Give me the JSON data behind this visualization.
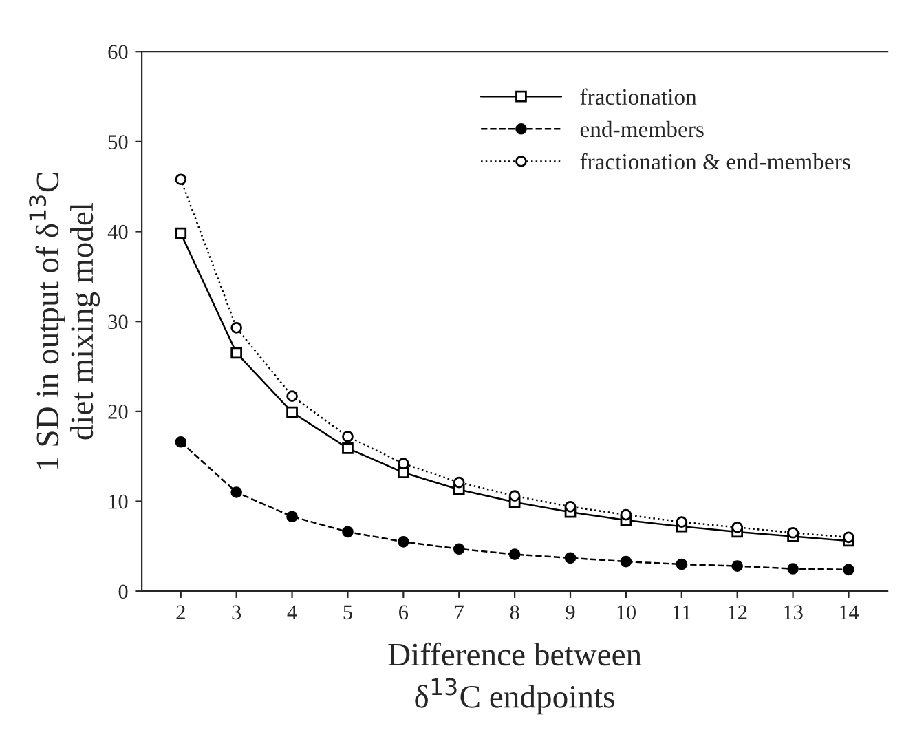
{
  "chart_data": {
    "type": "line",
    "xlabel": "Difference between\nδ$^{13}$C endpoints",
    "ylabel": "1 SD in output of δ$^{13}$C\ndiet mixing model",
    "x": [
      2,
      3,
      4,
      5,
      6,
      7,
      8,
      9,
      10,
      11,
      12,
      13,
      14
    ],
    "series": [
      {
        "name": "fractionation",
        "color": "#000000",
        "marker": "square",
        "line_style": "solid",
        "values": [
          39.8,
          26.5,
          19.9,
          15.9,
          13.2,
          11.3,
          9.9,
          8.8,
          7.9,
          7.2,
          6.6,
          6.1,
          5.6
        ]
      },
      {
        "name": "end-members",
        "color": "#000000",
        "marker": "circle",
        "line_style": "dashed",
        "values": [
          16.6,
          11.0,
          8.3,
          6.6,
          5.5,
          4.7,
          4.1,
          3.7,
          3.3,
          3.0,
          2.8,
          2.5,
          2.4
        ]
      },
      {
        "name": "fractionation & end-members",
        "color": "#000000",
        "marker": "circle",
        "line_style": "dotted",
        "values": [
          45.8,
          29.3,
          21.7,
          17.2,
          14.2,
          12.1,
          10.6,
          9.4,
          8.5,
          7.7,
          7.1,
          6.5,
          6.0
        ]
      }
    ],
    "xlim": [
      1.3,
      14.7
    ],
    "xticks": [
      2,
      3,
      4,
      5,
      6,
      7,
      8,
      9,
      10,
      11,
      12,
      13,
      14
    ],
    "ylim": [
      0,
      60
    ],
    "yticks": [
      0,
      10,
      20,
      30,
      40,
      50,
      60
    ],
    "grid": false,
    "legend": "top right"
  }
}
